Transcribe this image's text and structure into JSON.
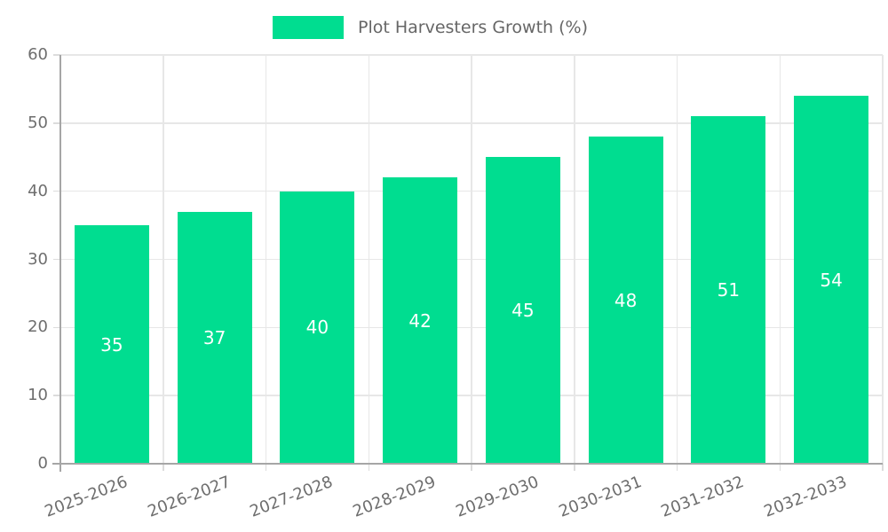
{
  "chart_data": {
    "type": "bar",
    "title": "Plot Harvesters Growth (%)",
    "legend": {
      "label": "Plot Harvesters Growth (%)",
      "position": "top-center"
    },
    "categories": [
      "2025-2026",
      "2026-2027",
      "2027-2028",
      "2028-2029",
      "2029-2030",
      "2030-2031",
      "2031-2032",
      "2032-2033"
    ],
    "values": [
      35,
      37,
      40,
      42,
      45,
      48,
      51,
      54
    ],
    "value_labels_inside_bars": true,
    "xlabel": "",
    "ylabel": "",
    "ylim": [
      0,
      60
    ],
    "yticks": [
      0,
      10,
      20,
      30,
      40,
      50,
      60
    ],
    "grid": true,
    "x_label_rotation_deg": -21,
    "colors": {
      "bar": "#00DD90",
      "bar_value_label": "#FFFFFF",
      "axis_line": "#A6A6A6",
      "gridline": "#E7E7E7",
      "tick_label": "#6E6E6E",
      "legend_text": "#666666",
      "background": "#FFFFFF"
    }
  }
}
